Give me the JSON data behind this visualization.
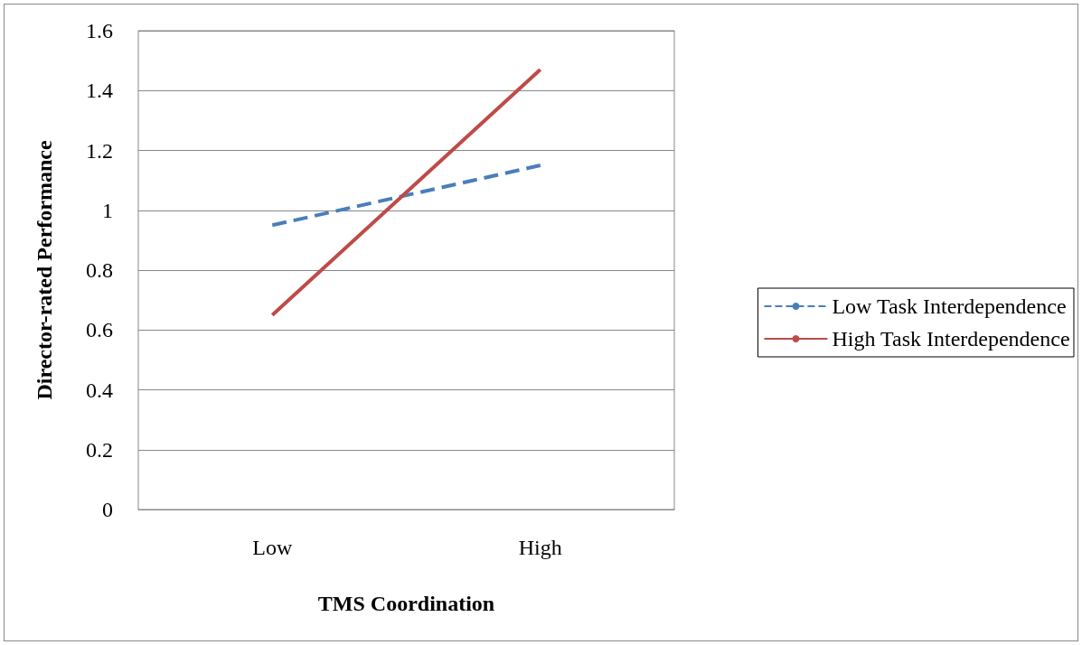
{
  "chart_data": {
    "type": "line",
    "xlabel": "TMS Coordination",
    "ylabel": "Director-rated Performance",
    "categories": [
      "Low",
      "High"
    ],
    "series": [
      {
        "name": "Low Task Interdependence",
        "color": "#4a7ebb",
        "values": [
          0.95,
          1.15
        ],
        "line_style": "dashed"
      },
      {
        "name": "High Task Interdependence",
        "color": "#be4b48",
        "values": [
          0.65,
          1.47
        ],
        "line_style": "solid"
      }
    ],
    "ylim": [
      0,
      1.6
    ],
    "yticks": [
      0,
      0.2,
      0.4,
      0.6,
      0.8,
      1,
      1.2,
      1.4,
      1.6
    ],
    "grid": "y",
    "legend": "right",
    "marker": "none"
  }
}
